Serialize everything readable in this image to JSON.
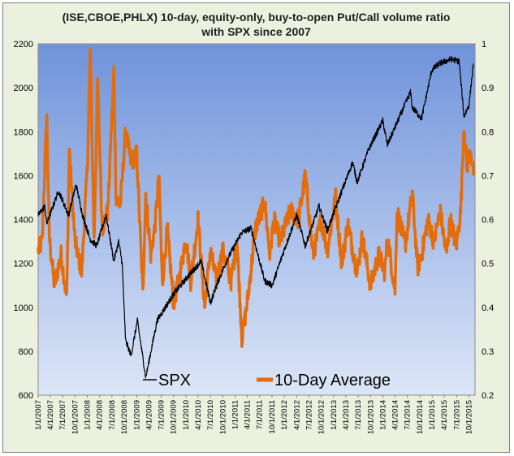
{
  "chart_data": {
    "type": "line",
    "title": "(ISE,CBOE,PHLX) 10-day, equity-only, buy-to-open Put/Call volume ratio",
    "subtitle": "with SPX since 2007",
    "x_start": "2007-01-01",
    "x_end": "2015-11-15",
    "y_left": {
      "min": 600,
      "max": 2200,
      "ticks": [
        600,
        800,
        1000,
        1200,
        1400,
        1600,
        1800,
        2000,
        2200
      ]
    },
    "y_right": {
      "min": 0.2,
      "max": 1.0,
      "ticks": [
        "0.2",
        "0.3",
        "0.4",
        "0.5",
        "0.6",
        "0.7",
        "0.8",
        "0.9",
        "1"
      ]
    },
    "x_ticks": [
      "1/1/2007",
      "4/1/2007",
      "7/1/2007",
      "10/1/2007",
      "1/1/2008",
      "4/1/2008",
      "7/1/2008",
      "10/1/2008",
      "1/1/2009",
      "4/1/2009",
      "7/1/2009",
      "10/1/2009",
      "1/1/2010",
      "4/1/2010",
      "7/1/2010",
      "10/1/2010",
      "1/1/2011",
      "4/1/2011",
      "7/1/2011",
      "10/1/2011",
      "1/1/2012",
      "4/1/2012",
      "7/1/2012",
      "10/1/2012",
      "1/1/2013",
      "4/1/2013",
      "7/1/2013",
      "10/1/2013",
      "1/1/2014",
      "4/1/2014",
      "7/1/2014",
      "10/1/2014",
      "1/1/2015",
      "4/1/2015",
      "7/1/2015",
      "10/1/2015"
    ],
    "legend": [
      "SPX",
      "10-Day Average"
    ],
    "series": [
      {
        "name": "SPX",
        "axis": "left",
        "color": "#000000",
        "x": [
          "2007-01-01",
          "2007-02-20",
          "2007-03-05",
          "2007-06-01",
          "2007-08-15",
          "2007-10-09",
          "2007-11-26",
          "2008-01-22",
          "2008-03-10",
          "2008-05-19",
          "2008-07-15",
          "2008-08-20",
          "2008-09-15",
          "2008-10-10",
          "2008-11-20",
          "2009-01-06",
          "2009-03-09",
          "2009-06-01",
          "2009-10-01",
          "2010-01-15",
          "2010-04-23",
          "2010-07-02",
          "2010-08-15",
          "2010-11-05",
          "2011-02-18",
          "2011-04-29",
          "2011-08-08",
          "2011-10-03",
          "2011-12-30",
          "2012-04-02",
          "2012-06-04",
          "2012-09-14",
          "2012-11-15",
          "2013-01-01",
          "2013-05-21",
          "2013-06-24",
          "2013-09-18",
          "2013-12-31",
          "2014-02-03",
          "2014-07-24",
          "2014-08-07",
          "2014-10-15",
          "2014-12-29",
          "2015-02-24",
          "2015-05-21",
          "2015-07-20",
          "2015-08-25",
          "2015-10-01",
          "2015-11-03"
        ],
        "values": [
          1420,
          1460,
          1380,
          1530,
          1420,
          1560,
          1420,
          1310,
          1280,
          1420,
          1210,
          1300,
          1200,
          850,
          780,
          940,
          680,
          940,
          1060,
          1140,
          1210,
          1020,
          1100,
          1220,
          1340,
          1360,
          1120,
          1100,
          1260,
          1420,
          1280,
          1460,
          1350,
          1430,
          1660,
          1570,
          1720,
          1850,
          1740,
          1980,
          1910,
          1860,
          2080,
          2110,
          2130,
          2120,
          1870,
          1920,
          2110
        ]
      },
      {
        "name": "10-Day Average",
        "axis": "right",
        "color": "#e46c0a",
        "x": [
          "2007-01-01",
          "2007-02-01",
          "2007-03-05",
          "2007-03-25",
          "2007-05-01",
          "2007-06-20",
          "2007-08-01",
          "2007-08-20",
          "2007-10-01",
          "2007-11-20",
          "2008-01-01",
          "2008-01-22",
          "2008-02-20",
          "2008-03-17",
          "2008-04-20",
          "2008-06-01",
          "2008-07-15",
          "2008-08-01",
          "2008-09-01",
          "2008-10-10",
          "2008-11-20",
          "2009-01-01",
          "2009-02-15",
          "2009-03-09",
          "2009-04-15",
          "2009-05-15",
          "2009-06-15",
          "2009-07-10",
          "2009-08-15",
          "2009-10-01",
          "2009-11-15",
          "2010-01-01",
          "2010-02-05",
          "2010-04-01",
          "2010-05-20",
          "2010-07-01",
          "2010-08-15",
          "2010-10-01",
          "2010-12-01",
          "2011-01-15",
          "2011-02-20",
          "2011-04-01",
          "2011-06-01",
          "2011-08-08",
          "2011-09-15",
          "2011-10-15",
          "2011-12-01",
          "2012-02-15",
          "2012-04-15",
          "2012-06-04",
          "2012-08-01",
          "2012-10-01",
          "2012-11-15",
          "2013-01-15",
          "2013-03-01",
          "2013-04-15",
          "2013-06-24",
          "2013-08-01",
          "2013-10-01",
          "2013-12-01",
          "2014-01-15",
          "2014-02-03",
          "2014-04-01",
          "2014-04-15",
          "2014-06-15",
          "2014-08-07",
          "2014-09-15",
          "2014-10-15",
          "2014-12-01",
          "2015-01-15",
          "2015-03-01",
          "2015-04-15",
          "2015-05-15",
          "2015-06-29",
          "2015-08-01",
          "2015-08-25",
          "2015-09-15",
          "2015-10-15",
          "2015-11-03"
        ],
        "values": [
          0.53,
          0.55,
          0.84,
          0.56,
          0.45,
          0.52,
          0.42,
          0.76,
          0.55,
          0.48,
          0.72,
          0.99,
          0.55,
          0.92,
          0.58,
          0.62,
          0.94,
          0.65,
          0.63,
          0.8,
          0.73,
          0.75,
          0.43,
          0.66,
          0.52,
          0.58,
          0.7,
          0.45,
          0.58,
          0.41,
          0.47,
          0.56,
          0.46,
          0.6,
          0.4,
          0.53,
          0.46,
          0.53,
          0.46,
          0.55,
          0.33,
          0.41,
          0.58,
          0.64,
          0.52,
          0.6,
          0.55,
          0.62,
          0.6,
          0.7,
          0.52,
          0.6,
          0.53,
          0.65,
          0.5,
          0.59,
          0.48,
          0.56,
          0.45,
          0.52,
          0.48,
          0.56,
          0.44,
          0.62,
          0.54,
          0.66,
          0.49,
          0.52,
          0.6,
          0.55,
          0.62,
          0.52,
          0.6,
          0.54,
          0.62,
          0.82,
          0.72,
          0.76,
          0.7
        ]
      }
    ]
  }
}
